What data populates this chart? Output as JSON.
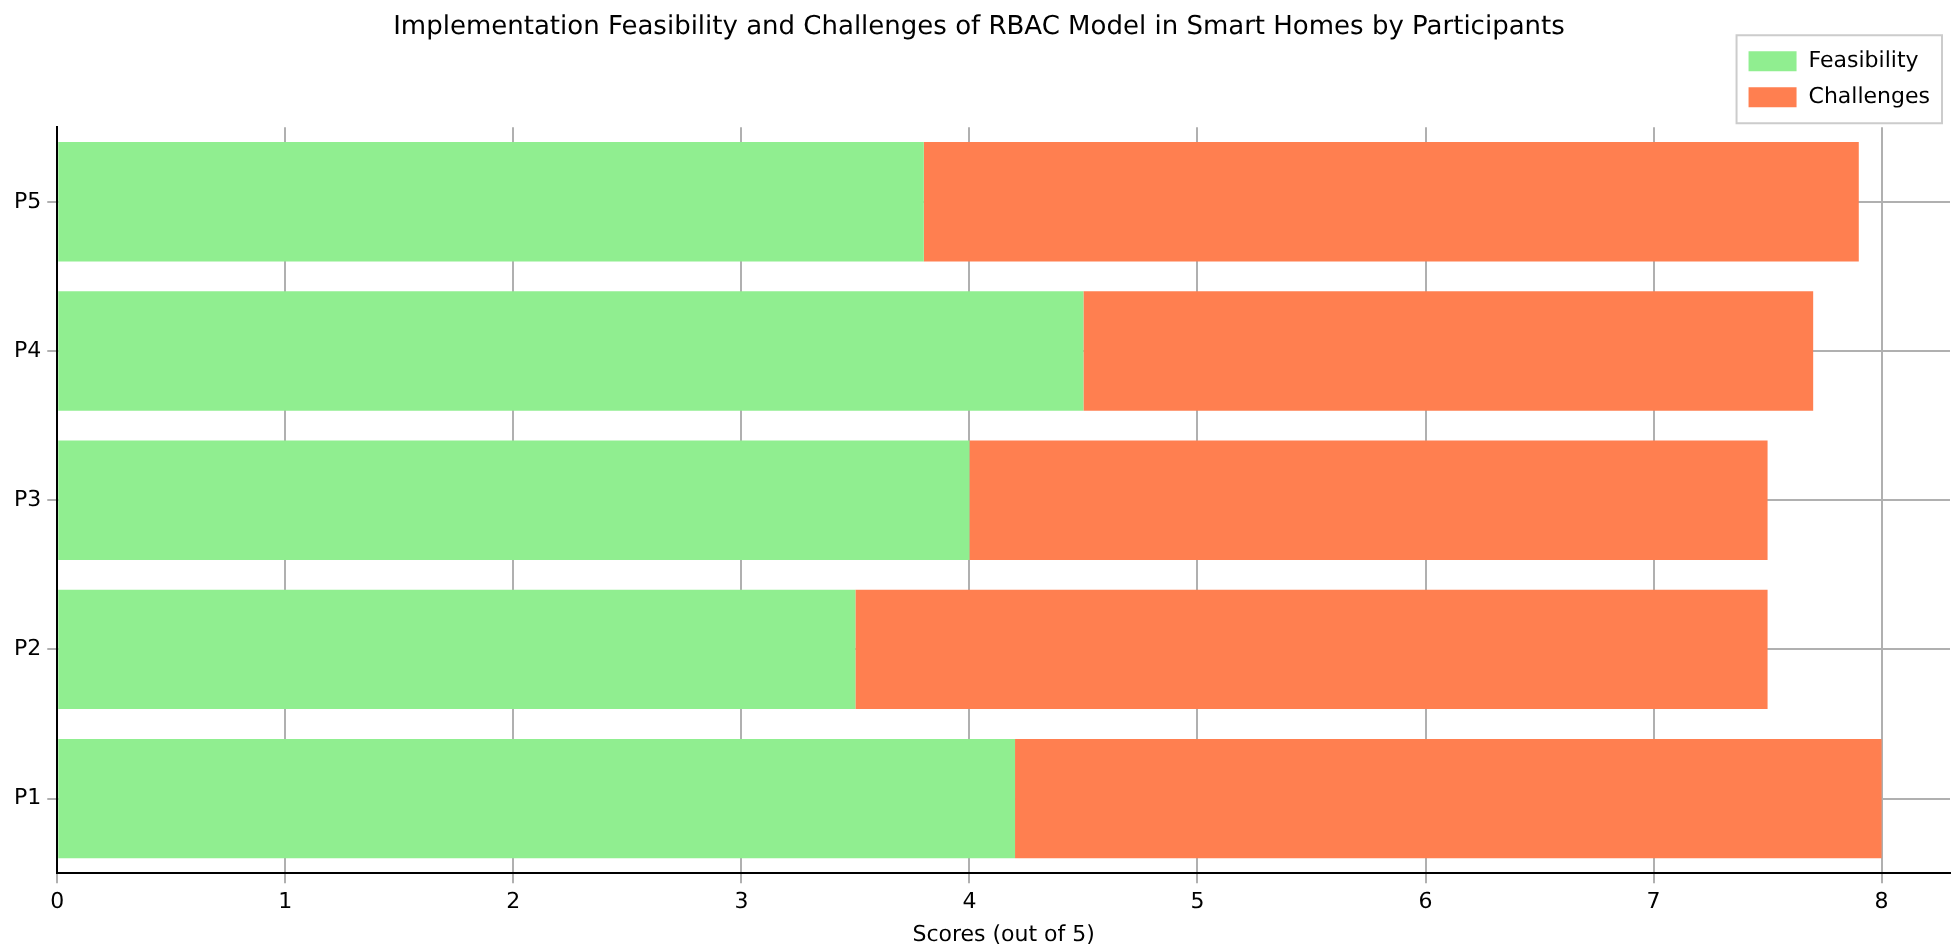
{
  "chart_data": {
    "type": "bar",
    "orientation": "horizontal",
    "stacked": true,
    "title": "Implementation Feasibility and Challenges of RBAC Model in Smart Homes by Participants",
    "xlabel": "Scores (out of 5)",
    "categories": [
      "P5",
      "P4",
      "P3",
      "P2",
      "P1"
    ],
    "series": [
      {
        "name": "Feasibility",
        "color": "#90ee90",
        "values": [
          3.8,
          4.5,
          4.0,
          3.5,
          4.2
        ]
      },
      {
        "name": "Challenges",
        "color": "#ff7f50",
        "values": [
          4.1,
          3.2,
          3.5,
          4.0,
          3.8
        ]
      }
    ],
    "xlim": [
      0,
      8.3
    ],
    "xticks": [
      0,
      1,
      2,
      3,
      4,
      5,
      6,
      7,
      8
    ],
    "grid": true,
    "legend": "top right"
  }
}
